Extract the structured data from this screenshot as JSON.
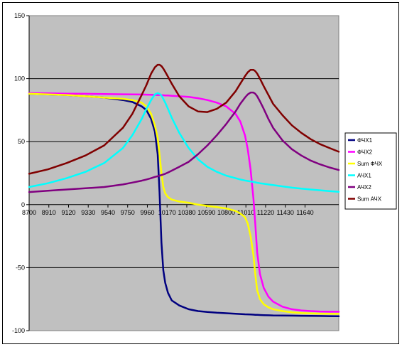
{
  "chart_data": {
    "type": "line",
    "title": "",
    "xlabel": "",
    "ylabel": "",
    "ylim": [
      -100,
      150
    ],
    "xlim": [
      8700,
      12000
    ],
    "y_ticks": [
      150,
      100,
      50,
      0,
      -50,
      -100
    ],
    "x_ticks": [
      8700,
      8910,
      9120,
      9330,
      9540,
      9750,
      9960,
      10170,
      10380,
      10590,
      10800,
      11010,
      11220,
      11430,
      11640
    ],
    "x_axis_at": 0,
    "plot_background": "#c0c0c0",
    "grid": "horizontal",
    "legend_position": "right",
    "x": [
      8700,
      8900,
      9100,
      9300,
      9500,
      9700,
      9800,
      9900,
      9950,
      10000,
      10040,
      10070,
      10090,
      10110,
      10130,
      10150,
      10180,
      10220,
      10300,
      10400,
      10500,
      10600,
      10700,
      10800,
      10900,
      10950,
      11000,
      11030,
      11060,
      11090,
      11110,
      11130,
      11160,
      11200,
      11250,
      11300,
      11400,
      11500,
      11600,
      11700,
      11800,
      11900,
      12000
    ],
    "series": [
      {
        "name": "ФЧХ1",
        "color": "#000080",
        "values": [
          88,
          87.5,
          87,
          86,
          85,
          83,
          81.5,
          78,
          75,
          68,
          58,
          40,
          10,
          -30,
          -52,
          -62,
          -70,
          -76,
          -80,
          -83,
          -84.5,
          -85.2,
          -85.8,
          -86.2,
          -86.6,
          -86.8,
          -87,
          -87.1,
          -87.2,
          -87.3,
          -87.4,
          -87.5,
          -87.6,
          -87.7,
          -87.8,
          -87.9,
          -88,
          -88.1,
          -88.2,
          -88.3,
          -88.4,
          -88.5,
          -88.6
        ]
      },
      {
        "name": "ФЧХ2",
        "color": "#ff00ff",
        "values": [
          88.5,
          88.3,
          88.1,
          88,
          87.8,
          87.6,
          87.5,
          87.4,
          87.3,
          87.2,
          87.1,
          87,
          87,
          86.9,
          86.8,
          86.7,
          86.6,
          86.4,
          86,
          85.5,
          84.5,
          83,
          81,
          78,
          72,
          66,
          55,
          44,
          28,
          5,
          -15,
          -38,
          -55,
          -66,
          -73,
          -77,
          -81,
          -83,
          -84,
          -84.5,
          -84.8,
          -85,
          -85
        ]
      },
      {
        "name": "Sum ФЧХ",
        "color": "#ffff00",
        "values": [
          88,
          87.5,
          87,
          86,
          85,
          84,
          83,
          81,
          78,
          72,
          63,
          53,
          40,
          25,
          14,
          9,
          6,
          4,
          2.5,
          1.5,
          0,
          -1,
          -2,
          -3,
          -5,
          -7,
          -10,
          -15,
          -25,
          -40,
          -55,
          -68,
          -75,
          -79,
          -81.5,
          -83,
          -84.5,
          -85.5,
          -86,
          -86.3,
          -86.5,
          -86.6,
          -86.7
        ]
      },
      {
        "name": "АЧХ1",
        "color": "#00ffff",
        "values": [
          14,
          17,
          21,
          26,
          33,
          45,
          55,
          68,
          76,
          83,
          87.5,
          88.5,
          88,
          86.5,
          84,
          81,
          76,
          69,
          57,
          45,
          36,
          30,
          26,
          23,
          21,
          20,
          19.2,
          18.8,
          18.4,
          18,
          17.7,
          17.4,
          17,
          16.6,
          16,
          15.5,
          14.5,
          13.5,
          12.7,
          12,
          11.4,
          10.8,
          10.2
        ]
      },
      {
        "name": "АЧХ2",
        "color": "#800080",
        "values": [
          10,
          11,
          12,
          13,
          14,
          16,
          17.5,
          19,
          20,
          21,
          22,
          22.5,
          23,
          23.5,
          24,
          24.5,
          25.5,
          27,
          30,
          34,
          40,
          47,
          55,
          64,
          74,
          80,
          85,
          87.5,
          89,
          89,
          88,
          86,
          82,
          76,
          68,
          61,
          51,
          44,
          39,
          35,
          32,
          29.5,
          27.5
        ]
      },
      {
        "name": "Sum АЧХ",
        "color": "#800000",
        "values": [
          24.5,
          28,
          33,
          39,
          47,
          61,
          72,
          87,
          95,
          104,
          109,
          111,
          111,
          110,
          108,
          105.5,
          101.5,
          96,
          86,
          78,
          74,
          73.5,
          76,
          81,
          90,
          96,
          102,
          105,
          107,
          107,
          106,
          104,
          100,
          94,
          87,
          80,
          71,
          63,
          57,
          52,
          48,
          45,
          42
        ]
      }
    ]
  }
}
